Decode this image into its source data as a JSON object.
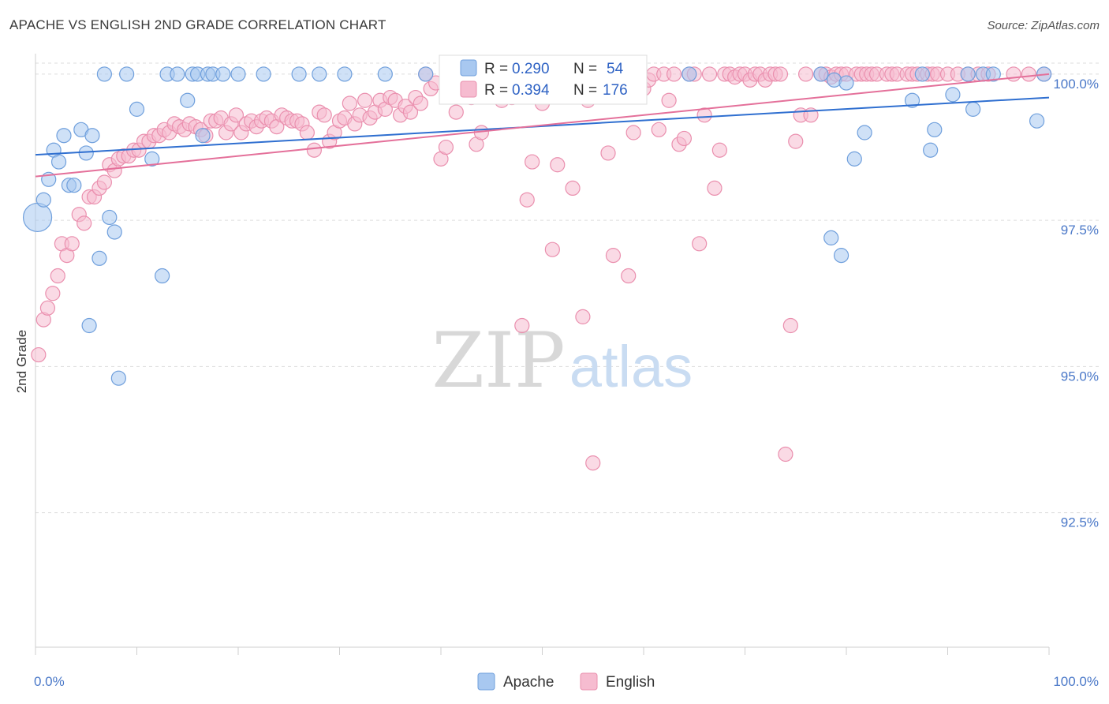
{
  "title": "APACHE VS ENGLISH 2ND GRADE CORRELATION CHART",
  "source": "Source: ZipAtlas.com",
  "watermark": {
    "zip": "ZIP",
    "atlas": "atlas"
  },
  "colors": {
    "apache_fill": "#a8c8f0",
    "apache_stroke": "#6f9fdc",
    "apache_line": "#2f6fd0",
    "english_fill": "#f6bcd0",
    "english_stroke": "#ea8fae",
    "english_line": "#e4709a",
    "tick_label": "#4a78c8",
    "grid": "#dddddd"
  },
  "legend": {
    "apache": {
      "r_label": "R =",
      "r_value": "0.290",
      "n_label": "N =",
      "n_value": "54"
    },
    "english": {
      "r_label": "R =",
      "r_value": "0.394",
      "n_label": "N =",
      "n_value": "176"
    }
  },
  "chart_data": {
    "type": "scatter",
    "title": "APACHE VS ENGLISH 2ND GRADE CORRELATION CHART",
    "xlabel": "",
    "ylabel": "2nd Grade",
    "xlim": [
      0,
      100
    ],
    "ylim": [
      90.2,
      100.35
    ],
    "x_tick_labels": [
      "0.0%",
      "100.0%"
    ],
    "y_ticks": [
      92.5,
      95.0,
      97.5,
      100.0
    ],
    "y_tick_labels": [
      "92.5%",
      "95.0%",
      "97.5%",
      "100.0%"
    ],
    "grid": true,
    "legend_placement": "bottom-center",
    "series": [
      {
        "name": "Apache",
        "trend": [
          [
            0,
            98.62
          ],
          [
            100,
            99.6
          ]
        ],
        "points": [
          [
            0.2,
            97.55,
            18
          ],
          [
            0.8,
            97.85,
            9
          ],
          [
            1.3,
            98.2,
            9
          ],
          [
            1.8,
            98.7,
            9
          ],
          [
            2.3,
            98.5,
            9
          ],
          [
            2.8,
            98.95,
            9
          ],
          [
            3.3,
            98.1,
            9
          ],
          [
            3.8,
            98.1,
            9
          ],
          [
            4.5,
            99.05,
            9
          ],
          [
            5.0,
            98.65,
            9
          ],
          [
            5.6,
            98.95,
            9
          ],
          [
            5.3,
            95.7,
            9
          ],
          [
            6.3,
            96.85,
            9
          ],
          [
            7.3,
            97.55,
            9
          ],
          [
            7.8,
            97.3,
            9
          ],
          [
            8.2,
            94.8,
            9
          ],
          [
            6.8,
            100.0,
            9
          ],
          [
            9.0,
            100.0,
            9
          ],
          [
            10.0,
            99.4,
            9
          ],
          [
            11.5,
            98.55,
            9
          ],
          [
            12.5,
            96.55,
            9
          ],
          [
            13.0,
            100.0,
            9
          ],
          [
            14.0,
            100.0,
            9
          ],
          [
            15.0,
            99.55,
            9
          ],
          [
            15.5,
            100.0,
            9
          ],
          [
            16.0,
            100.0,
            9
          ],
          [
            16.5,
            98.95,
            9
          ],
          [
            17.0,
            100.0,
            9
          ],
          [
            17.5,
            100.0,
            9
          ],
          [
            18.5,
            100.0,
            9
          ],
          [
            20.0,
            100.0,
            9
          ],
          [
            22.5,
            100.0,
            9
          ],
          [
            26.0,
            100.0,
            9
          ],
          [
            28.0,
            100.0,
            9
          ],
          [
            30.5,
            100.0,
            9
          ],
          [
            34.5,
            100.0,
            9
          ],
          [
            38.5,
            100.0,
            9
          ],
          [
            43.5,
            100.0,
            9
          ],
          [
            64.5,
            100.0,
            9
          ],
          [
            77.5,
            100.0,
            9
          ],
          [
            78.5,
            97.2,
            9
          ],
          [
            78.8,
            99.9,
            9
          ],
          [
            79.5,
            96.9,
            9
          ],
          [
            80.0,
            99.85,
            9
          ],
          [
            80.8,
            98.55,
            9
          ],
          [
            81.8,
            99.0,
            9
          ],
          [
            86.5,
            99.55,
            9
          ],
          [
            87.5,
            100.0,
            9
          ],
          [
            88.3,
            98.7,
            9
          ],
          [
            88.7,
            99.05,
            9
          ],
          [
            90.5,
            99.65,
            9
          ],
          [
            92.0,
            100.0,
            9
          ],
          [
            92.5,
            99.4,
            9
          ],
          [
            93.5,
            100.0,
            9
          ],
          [
            94.5,
            100.0,
            9
          ],
          [
            98.8,
            99.2,
            9
          ],
          [
            99.5,
            100.0,
            9
          ]
        ]
      },
      {
        "name": "English",
        "trend": [
          [
            0,
            98.25
          ],
          [
            100,
            100.0
          ]
        ],
        "points": [
          [
            0.3,
            95.2,
            9
          ],
          [
            0.8,
            95.8,
            9
          ],
          [
            1.2,
            96.0,
            9
          ],
          [
            1.7,
            96.25,
            9
          ],
          [
            2.2,
            96.55,
            9
          ],
          [
            2.6,
            97.1,
            9
          ],
          [
            3.1,
            96.9,
            9
          ],
          [
            3.6,
            97.1,
            9
          ],
          [
            4.3,
            97.6,
            9
          ],
          [
            4.8,
            97.45,
            9
          ],
          [
            5.3,
            97.9,
            9
          ],
          [
            5.8,
            97.9,
            9
          ],
          [
            6.3,
            98.05,
            9
          ],
          [
            6.8,
            98.15,
            9
          ],
          [
            7.3,
            98.45,
            9
          ],
          [
            7.8,
            98.35,
            9
          ],
          [
            8.2,
            98.55,
            9
          ],
          [
            8.7,
            98.6,
            9
          ],
          [
            9.2,
            98.6,
            9
          ],
          [
            9.7,
            98.7,
            9
          ],
          [
            10.2,
            98.7,
            9
          ],
          [
            10.7,
            98.85,
            9
          ],
          [
            11.2,
            98.85,
            9
          ],
          [
            11.7,
            98.95,
            9
          ],
          [
            12.2,
            98.95,
            9
          ],
          [
            12.7,
            99.05,
            9
          ],
          [
            13.2,
            99.0,
            9
          ],
          [
            13.7,
            99.15,
            9
          ],
          [
            14.2,
            99.1,
            9
          ],
          [
            14.7,
            99.05,
            9
          ],
          [
            15.2,
            99.15,
            9
          ],
          [
            15.8,
            99.1,
            9
          ],
          [
            16.3,
            99.05,
            9
          ],
          [
            16.8,
            98.95,
            9
          ],
          [
            17.3,
            99.2,
            9
          ],
          [
            17.8,
            99.2,
            9
          ],
          [
            18.3,
            99.25,
            9
          ],
          [
            18.8,
            99.0,
            9
          ],
          [
            19.3,
            99.15,
            9
          ],
          [
            19.8,
            99.3,
            9
          ],
          [
            20.3,
            99.0,
            9
          ],
          [
            20.8,
            99.15,
            9
          ],
          [
            21.3,
            99.2,
            9
          ],
          [
            21.8,
            99.1,
            9
          ],
          [
            22.3,
            99.2,
            9
          ],
          [
            22.8,
            99.25,
            9
          ],
          [
            23.3,
            99.2,
            9
          ],
          [
            23.8,
            99.1,
            9
          ],
          [
            24.3,
            99.3,
            9
          ],
          [
            24.8,
            99.25,
            9
          ],
          [
            25.3,
            99.2,
            9
          ],
          [
            25.8,
            99.2,
            9
          ],
          [
            26.3,
            99.15,
            9
          ],
          [
            26.8,
            99.0,
            9
          ],
          [
            27.5,
            98.7,
            9
          ],
          [
            28.0,
            99.35,
            9
          ],
          [
            28.5,
            99.3,
            9
          ],
          [
            29.0,
            98.85,
            9
          ],
          [
            29.5,
            99.0,
            9
          ],
          [
            30.0,
            99.2,
            9
          ],
          [
            30.5,
            99.25,
            9
          ],
          [
            31.0,
            99.5,
            9
          ],
          [
            31.5,
            99.15,
            9
          ],
          [
            32.0,
            99.3,
            9
          ],
          [
            32.5,
            99.55,
            9
          ],
          [
            33.0,
            99.25,
            9
          ],
          [
            33.5,
            99.35,
            9
          ],
          [
            34.0,
            99.55,
            9
          ],
          [
            34.5,
            99.4,
            9
          ],
          [
            35.0,
            99.6,
            9
          ],
          [
            35.5,
            99.55,
            9
          ],
          [
            36.0,
            99.3,
            9
          ],
          [
            36.5,
            99.45,
            9
          ],
          [
            37.0,
            99.35,
            9
          ],
          [
            37.5,
            99.6,
            9
          ],
          [
            38.0,
            99.5,
            9
          ],
          [
            38.5,
            100.0,
            9
          ],
          [
            39.0,
            99.75,
            9
          ],
          [
            39.5,
            99.85,
            9
          ],
          [
            40.0,
            98.55,
            9
          ],
          [
            40.5,
            98.75,
            9
          ],
          [
            41.0,
            99.7,
            9
          ],
          [
            41.5,
            99.35,
            9
          ],
          [
            42.0,
            99.9,
            9
          ],
          [
            42.5,
            99.85,
            9
          ],
          [
            43.0,
            99.6,
            9
          ],
          [
            43.5,
            98.8,
            9
          ],
          [
            44.0,
            99.0,
            9
          ],
          [
            44.5,
            99.75,
            9
          ],
          [
            45.0,
            99.8,
            9
          ],
          [
            46.0,
            99.55,
            9
          ],
          [
            47.0,
            99.6,
            9
          ],
          [
            48.0,
            95.7,
            9
          ],
          [
            48.5,
            97.85,
            9
          ],
          [
            49.0,
            98.5,
            9
          ],
          [
            50.0,
            99.5,
            9
          ],
          [
            50.5,
            99.7,
            9
          ],
          [
            51.0,
            97.0,
            9
          ],
          [
            51.5,
            98.45,
            9
          ],
          [
            52.0,
            99.8,
            9
          ],
          [
            53.0,
            98.05,
            9
          ],
          [
            53.5,
            100.0,
            9
          ],
          [
            54.0,
            95.85,
            9
          ],
          [
            54.5,
            99.55,
            9
          ],
          [
            55.0,
            93.35,
            9
          ],
          [
            55.5,
            99.8,
            9
          ],
          [
            56.0,
            100.0,
            9
          ],
          [
            56.5,
            98.65,
            9
          ],
          [
            57.0,
            96.9,
            9
          ],
          [
            57.5,
            99.7,
            9
          ],
          [
            58.0,
            100.0,
            9
          ],
          [
            58.5,
            96.55,
            9
          ],
          [
            59.0,
            99.0,
            9
          ],
          [
            59.5,
            100.0,
            9
          ],
          [
            60.0,
            99.75,
            9
          ],
          [
            60.5,
            99.9,
            9
          ],
          [
            61.0,
            100.0,
            9
          ],
          [
            61.5,
            99.05,
            9
          ],
          [
            62.0,
            100.0,
            9
          ],
          [
            62.5,
            99.55,
            9
          ],
          [
            63.0,
            100.0,
            9
          ],
          [
            63.5,
            98.8,
            9
          ],
          [
            64.0,
            98.9,
            9
          ],
          [
            64.5,
            100.0,
            9
          ],
          [
            65.0,
            100.0,
            9
          ],
          [
            65.5,
            97.1,
            9
          ],
          [
            66.0,
            99.3,
            9
          ],
          [
            66.5,
            100.0,
            9
          ],
          [
            67.0,
            98.05,
            9
          ],
          [
            67.5,
            98.7,
            9
          ],
          [
            68.0,
            100.0,
            9
          ],
          [
            68.5,
            100.0,
            9
          ],
          [
            69.0,
            99.95,
            9
          ],
          [
            69.5,
            100.0,
            9
          ],
          [
            70.0,
            100.0,
            9
          ],
          [
            70.5,
            99.9,
            9
          ],
          [
            71.0,
            100.0,
            9
          ],
          [
            71.5,
            100.0,
            9
          ],
          [
            72.0,
            99.9,
            9
          ],
          [
            72.5,
            100.0,
            9
          ],
          [
            73.0,
            100.0,
            9
          ],
          [
            73.5,
            100.0,
            9
          ],
          [
            74.0,
            93.5,
            9
          ],
          [
            74.5,
            95.7,
            9
          ],
          [
            75.0,
            98.85,
            9
          ],
          [
            75.5,
            99.3,
            9
          ],
          [
            76.0,
            100.0,
            9
          ],
          [
            76.5,
            99.3,
            9
          ],
          [
            77.5,
            100.0,
            9
          ],
          [
            78.0,
            100.0,
            9
          ],
          [
            78.5,
            99.95,
            9
          ],
          [
            79.0,
            100.0,
            9
          ],
          [
            79.5,
            100.0,
            9
          ],
          [
            80.0,
            100.0,
            9
          ],
          [
            81.0,
            100.0,
            9
          ],
          [
            81.5,
            100.0,
            9
          ],
          [
            82.0,
            100.0,
            9
          ],
          [
            82.5,
            100.0,
            9
          ],
          [
            83.0,
            100.0,
            9
          ],
          [
            84.0,
            100.0,
            9
          ],
          [
            84.5,
            100.0,
            9
          ],
          [
            85.0,
            100.0,
            9
          ],
          [
            86.0,
            100.0,
            9
          ],
          [
            86.5,
            100.0,
            9
          ],
          [
            87.0,
            100.0,
            9
          ],
          [
            88.0,
            100.0,
            9
          ],
          [
            88.5,
            100.0,
            9
          ],
          [
            89.0,
            100.0,
            9
          ],
          [
            90.0,
            100.0,
            9
          ],
          [
            91.0,
            100.0,
            9
          ],
          [
            92.0,
            100.0,
            9
          ],
          [
            93.0,
            100.0,
            9
          ],
          [
            94.0,
            100.0,
            9
          ],
          [
            96.5,
            100.0,
            9
          ],
          [
            98.0,
            100.0,
            9
          ],
          [
            99.5,
            100.0,
            9
          ]
        ]
      }
    ]
  }
}
